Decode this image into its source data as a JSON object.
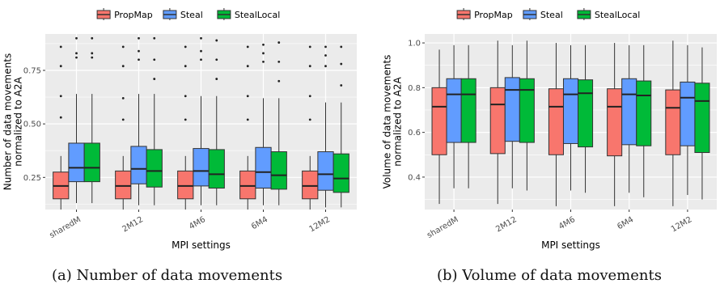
{
  "legend": [
    "PropMap",
    "Steal",
    "StealLocal"
  ],
  "colors": {
    "PropMap": "#F8766D",
    "Steal": "#619CFF",
    "StealLocal": "#00BA38"
  },
  "captions": {
    "a": "(a) Number of data movements",
    "b": "(b) Volume of data movements"
  },
  "chart_data": [
    {
      "type": "box",
      "title": "",
      "xlabel": "MPI settings",
      "ylabel": "Number of data movements\nnormalized to A2A",
      "categories": [
        "sharedM",
        "2M12",
        "4M6",
        "6M4",
        "12M2"
      ],
      "ylim": [
        0.1,
        0.92
      ],
      "yticks": [
        0.25,
        0.5,
        0.75
      ],
      "ytick_labels": [
        "0.25",
        "0.50",
        "0.75"
      ],
      "grid": true,
      "legend_position": "top",
      "series": [
        {
          "name": "PropMap",
          "boxes": [
            {
              "whislo": 0.1,
              "q1": 0.15,
              "med": 0.21,
              "q3": 0.275,
              "whishi": 0.35,
              "fliers": [
                0.53,
                0.63,
                0.77,
                0.86
              ]
            },
            {
              "whislo": 0.1,
              "q1": 0.15,
              "med": 0.21,
              "q3": 0.28,
              "whishi": 0.35,
              "fliers": [
                0.52,
                0.62,
                0.77,
                0.86
              ]
            },
            {
              "whislo": 0.1,
              "q1": 0.15,
              "med": 0.21,
              "q3": 0.28,
              "whishi": 0.35,
              "fliers": [
                0.52,
                0.63,
                0.77,
                0.86
              ]
            },
            {
              "whislo": 0.1,
              "q1": 0.15,
              "med": 0.21,
              "q3": 0.28,
              "whishi": 0.35,
              "fliers": [
                0.52,
                0.63,
                0.77,
                0.86
              ]
            },
            {
              "whislo": 0.1,
              "q1": 0.15,
              "med": 0.21,
              "q3": 0.28,
              "whishi": 0.35,
              "fliers": [
                0.52,
                0.63,
                0.77,
                0.86
              ]
            }
          ]
        },
        {
          "name": "Steal",
          "boxes": [
            {
              "whislo": 0.13,
              "q1": 0.23,
              "med": 0.295,
              "q3": 0.41,
              "whishi": 0.64,
              "fliers": [
                0.81,
                0.83,
                0.9
              ]
            },
            {
              "whislo": 0.12,
              "q1": 0.22,
              "med": 0.29,
              "q3": 0.395,
              "whishi": 0.64,
              "fliers": [
                0.8,
                0.84,
                0.9
              ]
            },
            {
              "whislo": 0.12,
              "q1": 0.21,
              "med": 0.28,
              "q3": 0.385,
              "whishi": 0.63,
              "fliers": [
                0.8,
                0.84,
                0.9
              ]
            },
            {
              "whislo": 0.12,
              "q1": 0.2,
              "med": 0.275,
              "q3": 0.39,
              "whishi": 0.62,
              "fliers": [
                0.79,
                0.83,
                0.87
              ]
            },
            {
              "whislo": 0.11,
              "q1": 0.19,
              "med": 0.265,
              "q3": 0.37,
              "whishi": 0.6,
              "fliers": [
                0.77,
                0.82,
                0.86
              ]
            }
          ]
        },
        {
          "name": "StealLocal",
          "boxes": [
            {
              "whislo": 0.13,
              "q1": 0.23,
              "med": 0.295,
              "q3": 0.41,
              "whishi": 0.64,
              "fliers": [
                0.81,
                0.83,
                0.9
              ]
            },
            {
              "whislo": 0.12,
              "q1": 0.205,
              "med": 0.28,
              "q3": 0.38,
              "whishi": 0.64,
              "fliers": [
                0.71,
                0.8,
                0.9
              ]
            },
            {
              "whislo": 0.12,
              "q1": 0.2,
              "med": 0.265,
              "q3": 0.38,
              "whishi": 0.63,
              "fliers": [
                0.71,
                0.8,
                0.89
              ]
            },
            {
              "whislo": 0.12,
              "q1": 0.195,
              "med": 0.26,
              "q3": 0.37,
              "whishi": 0.62,
              "fliers": [
                0.7,
                0.79,
                0.88
              ]
            },
            {
              "whislo": 0.11,
              "q1": 0.18,
              "med": 0.245,
              "q3": 0.36,
              "whishi": 0.6,
              "fliers": [
                0.68,
                0.78,
                0.86
              ]
            }
          ]
        }
      ]
    },
    {
      "type": "box",
      "title": "",
      "xlabel": "MPI settings",
      "ylabel": "Volume of data movements\nnormalized to A2A",
      "categories": [
        "sharedM",
        "2M12",
        "4M6",
        "6M4",
        "12M2"
      ],
      "ylim": [
        0.255,
        1.04
      ],
      "yticks": [
        0.4,
        0.6,
        0.8,
        1.0
      ],
      "ytick_labels": [
        "0.4",
        "0.6",
        "0.8",
        "1.0"
      ],
      "grid": true,
      "legend_position": "top",
      "series": [
        {
          "name": "PropMap",
          "boxes": [
            {
              "whislo": 0.28,
              "q1": 0.5,
              "med": 0.715,
              "q3": 0.8,
              "whishi": 0.97
            },
            {
              "whislo": 0.28,
              "q1": 0.505,
              "med": 0.725,
              "q3": 0.8,
              "whishi": 1.01
            },
            {
              "whislo": 0.27,
              "q1": 0.5,
              "med": 0.715,
              "q3": 0.795,
              "whishi": 1.0
            },
            {
              "whislo": 0.27,
              "q1": 0.495,
              "med": 0.715,
              "q3": 0.795,
              "whishi": 1.0
            },
            {
              "whislo": 0.27,
              "q1": 0.5,
              "med": 0.71,
              "q3": 0.79,
              "whishi": 1.01
            }
          ]
        },
        {
          "name": "Steal",
          "boxes": [
            {
              "whislo": 0.35,
              "q1": 0.555,
              "med": 0.77,
              "q3": 0.84,
              "whishi": 0.99
            },
            {
              "whislo": 0.35,
              "q1": 0.56,
              "med": 0.79,
              "q3": 0.845,
              "whishi": 0.99
            },
            {
              "whislo": 0.34,
              "q1": 0.55,
              "med": 0.77,
              "q3": 0.84,
              "whishi": 0.99
            },
            {
              "whislo": 0.33,
              "q1": 0.545,
              "med": 0.77,
              "q3": 0.84,
              "whishi": 0.99
            },
            {
              "whislo": 0.32,
              "q1": 0.54,
              "med": 0.755,
              "q3": 0.825,
              "whishi": 0.99
            }
          ]
        },
        {
          "name": "StealLocal",
          "boxes": [
            {
              "whislo": 0.35,
              "q1": 0.555,
              "med": 0.77,
              "q3": 0.84,
              "whishi": 0.99
            },
            {
              "whislo": 0.34,
              "q1": 0.555,
              "med": 0.79,
              "q3": 0.84,
              "whishi": 1.01
            },
            {
              "whislo": 0.33,
              "q1": 0.535,
              "med": 0.775,
              "q3": 0.835,
              "whishi": 0.99
            },
            {
              "whislo": 0.31,
              "q1": 0.54,
              "med": 0.765,
              "q3": 0.83,
              "whishi": 0.99
            },
            {
              "whislo": 0.3,
              "q1": 0.51,
              "med": 0.74,
              "q3": 0.82,
              "whishi": 0.98
            }
          ]
        }
      ]
    }
  ]
}
